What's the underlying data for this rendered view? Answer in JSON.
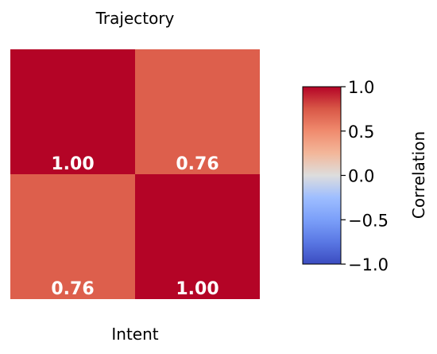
{
  "chart_data": {
    "type": "heatmap",
    "title": "",
    "top_label": "Trajectory",
    "bottom_label": "Intent",
    "rows": 2,
    "cols": 2,
    "values": [
      [
        1.0,
        0.76
      ],
      [
        0.76,
        1.0
      ]
    ],
    "value_labels": [
      [
        "1.00",
        "0.76"
      ],
      [
        "0.76",
        "1.00"
      ]
    ],
    "colormap": "coolwarm",
    "vmin": -1.0,
    "vmax": 1.0,
    "colorbar": {
      "label": "Correlation",
      "ticks": [
        1.0,
        0.5,
        0.0,
        -0.5,
        -1.0
      ],
      "tick_labels": [
        "1.0",
        "0.5",
        "0.0",
        "−0.5",
        "−1.0"
      ],
      "placement": "right"
    },
    "colors": {
      "high": "#b40426",
      "mid": "#dddddd",
      "low": "#3b4cc0",
      "cell_076": "#df634e"
    }
  }
}
